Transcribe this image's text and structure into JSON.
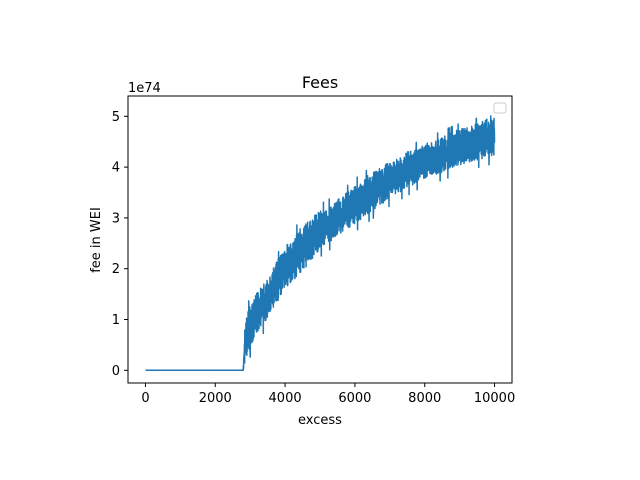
{
  "chart_data": {
    "type": "line",
    "title": "Fees",
    "xlabel": "excess",
    "ylabel": "fee in WEI",
    "y_multiplier": "1e74",
    "xlim": [
      -500,
      10500
    ],
    "ylim": [
      -0.25,
      5.4
    ],
    "x_ticks": [
      0,
      2000,
      4000,
      6000,
      8000,
      10000
    ],
    "x_tick_labels": [
      "0",
      "2000",
      "4000",
      "6000",
      "8000",
      "10000"
    ],
    "y_ticks": [
      0,
      1,
      2,
      3,
      4,
      5
    ],
    "y_tick_labels": [
      "0",
      "1",
      "2",
      "3",
      "4",
      "5"
    ],
    "grid": false,
    "legend": "upper-right (empty)",
    "line_color": "#1f77b4",
    "series": [
      {
        "x": [
          0,
          2800,
          2850,
          3000,
          3500,
          4000,
          4500,
          5000,
          5500,
          6000,
          6500,
          7000,
          7500,
          8000,
          8500,
          9000,
          9500,
          10000
        ],
        "y_low": [
          0,
          0,
          0.05,
          0.4,
          1.0,
          1.55,
          1.9,
          2.35,
          2.6,
          2.85,
          3.1,
          3.35,
          3.55,
          3.75,
          3.85,
          4.0,
          4.1,
          4.2
        ],
        "y_high": [
          0,
          0,
          0.9,
          1.35,
          1.8,
          2.45,
          2.85,
          3.15,
          3.35,
          3.65,
          3.9,
          4.1,
          4.3,
          4.45,
          4.6,
          4.75,
          4.85,
          5.05
        ]
      }
    ]
  }
}
